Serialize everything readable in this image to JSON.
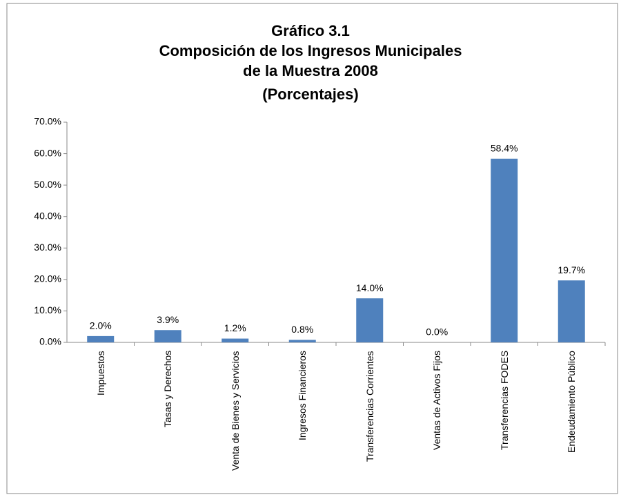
{
  "chart_data": {
    "type": "bar",
    "title": "Gráfico 3.1",
    "subtitle": "Composición de los Ingresos Municipales de la Muestra 2008",
    "unit_label": "(Porcentajes)",
    "categories": [
      "Impuestos",
      "Tasas y Derechos",
      "Venta de Bienes y Servicios",
      "Ingresos Financieros",
      "Transferencias Corrientes",
      "Ventas de Activos Fijos",
      "Transferencias FODES",
      "Endeudamiento Público"
    ],
    "values": [
      2.0,
      3.9,
      1.2,
      0.8,
      14.0,
      0.0,
      58.4,
      19.7
    ],
    "value_labels": [
      "2.0%",
      "3.9%",
      "1.2%",
      "0.8%",
      "14.0%",
      "0.0%",
      "58.4%",
      "19.7%"
    ],
    "color": "#4f81bd",
    "ylim": [
      0,
      70
    ],
    "yticks": [
      {
        "value": 0,
        "label": "0.0%"
      },
      {
        "value": 10,
        "label": "10.0%"
      },
      {
        "value": 20,
        "label": "20.0%"
      },
      {
        "value": 30,
        "label": "30.0%"
      },
      {
        "value": 40,
        "label": "40.0%"
      },
      {
        "value": 50,
        "label": "50.0%"
      },
      {
        "value": 60,
        "label": "60.0%"
      },
      {
        "value": 70,
        "label": "70.0%"
      }
    ],
    "grid": false
  }
}
